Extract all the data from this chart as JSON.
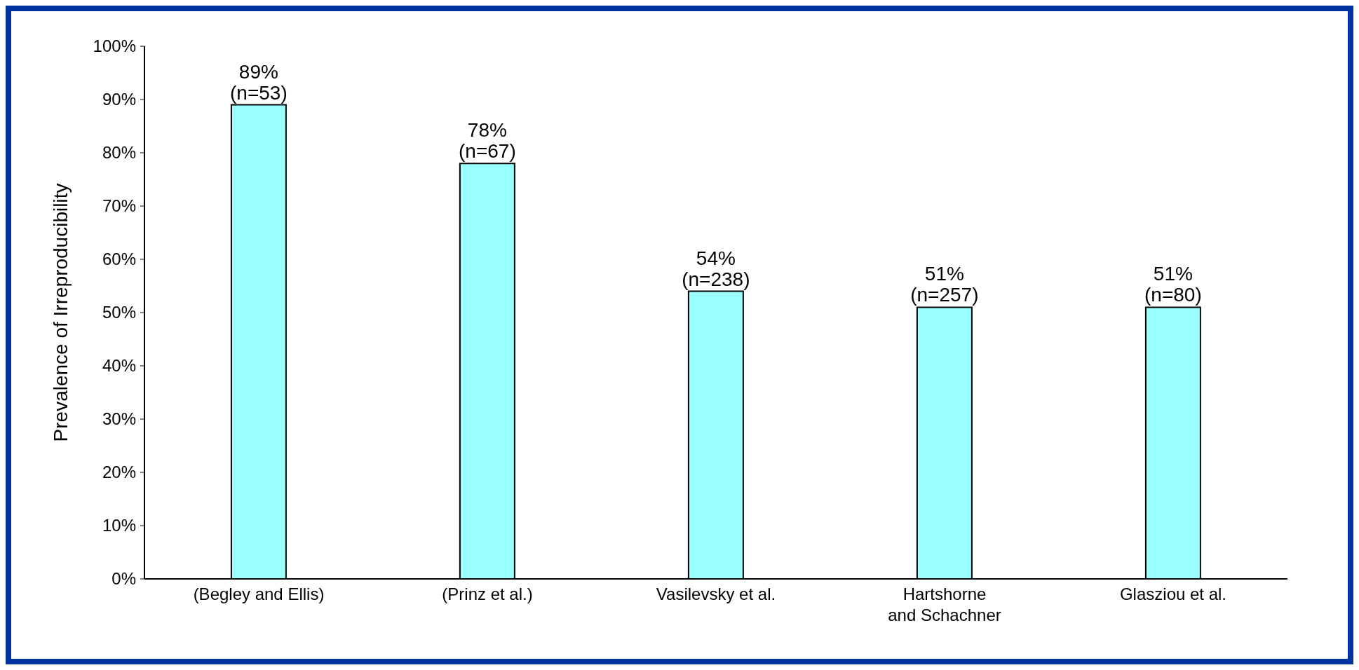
{
  "chart_data": {
    "type": "bar",
    "ylabel": "Prevalence of Irreproducibility",
    "categories": [
      "(Begley and Ellis)",
      "(Prinz et al.)",
      "Vasilevsky et al.",
      "Hartshorne\nand Schachner",
      "Glasziou et al."
    ],
    "values": [
      89,
      78,
      54,
      51,
      51
    ],
    "color": "#99ffff",
    "value_labels": [
      "89%\n(n=53)",
      "78%\n(n=67)",
      "54%\n(n=238)",
      "51%\n(n=257)",
      "51%\n(n=80)"
    ],
    "ylim": [
      0,
      100
    ],
    "yticks": [
      {
        "value": 0,
        "label": "0%"
      },
      {
        "value": 10,
        "label": "10%"
      },
      {
        "value": 20,
        "label": "20%"
      },
      {
        "value": 30,
        "label": "30%"
      },
      {
        "value": 40,
        "label": "40%"
      },
      {
        "value": 50,
        "label": "50%"
      },
      {
        "value": 60,
        "label": "60%"
      },
      {
        "value": 70,
        "label": "70%"
      },
      {
        "value": 80,
        "label": "80%"
      },
      {
        "value": 90,
        "label": "90%"
      },
      {
        "value": 100,
        "label": "100%"
      }
    ],
    "grid": false,
    "legend": false
  }
}
